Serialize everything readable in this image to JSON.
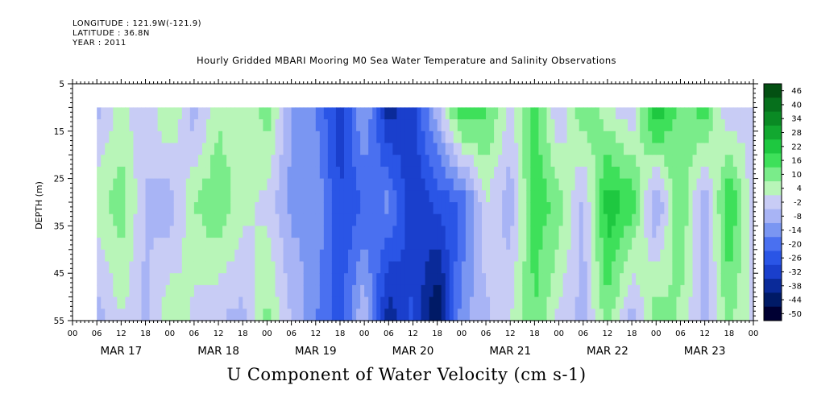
{
  "header": {
    "longitude": "LONGITUDE : 121.9W(-121.9)",
    "latitude": "LATITUDE : 36.8N",
    "year": "YEAR : 2011"
  },
  "chart_data": {
    "type": "heatmap",
    "title": "Hourly Gridded MBARI Mooring M0 Sea Water Temperature and Salinity Observations",
    "xlabel": "U Component of Water Velocity (cm s-1)",
    "ylabel": "DEPTH (m)",
    "x_range_hours": [
      0,
      168
    ],
    "data_start_hour": 6,
    "ylim": [
      5,
      55
    ],
    "data_depth_range": [
      10,
      55
    ],
    "y_ticks": [
      5,
      15,
      25,
      35,
      45,
      55
    ],
    "hour_tick_labels": [
      "00",
      "06",
      "12",
      "18"
    ],
    "date_labels": [
      "MAR 17",
      "MAR 18",
      "MAR 19",
      "MAR 20",
      "MAR 21",
      "MAR 22",
      "MAR 23"
    ],
    "colorbar": {
      "levels": [
        -50,
        -44,
        -38,
        -32,
        -26,
        -20,
        -14,
        -8,
        -2,
        4,
        10,
        16,
        22,
        28,
        34,
        40,
        46
      ],
      "labels": [
        "46",
        "40",
        "34",
        "28",
        "22",
        "16",
        "10",
        "4",
        "-2",
        "-8",
        "-14",
        "-20",
        "-26",
        "-32",
        "-38",
        "-44",
        "-50"
      ],
      "colors": [
        "#000033",
        "#001a66",
        "#0a2a99",
        "#1a3fcc",
        "#2a55e6",
        "#4a70f0",
        "#7a96f2",
        "#a8b4f5",
        "#c8ccf5",
        "#b8f5b8",
        "#7aec8a",
        "#3ee05a",
        "#1ec840",
        "#12a830",
        "#0a8a24",
        "#06701c",
        "#035012"
      ]
    },
    "u_velocity_hourly_by_depth": {
      "depth_profile_hours": [
        6,
        12,
        18,
        24,
        30,
        36,
        42,
        48,
        54,
        60,
        66,
        72,
        78,
        84,
        90,
        96,
        102,
        108,
        114,
        120,
        126,
        132,
        138,
        144,
        150,
        156,
        162,
        168
      ],
      "near_surface_10m": [
        -4,
        6,
        -2,
        12,
        -6,
        8,
        4,
        14,
        -8,
        -14,
        -30,
        -6,
        -36,
        -28,
        -4,
        24,
        18,
        2,
        20,
        -4,
        16,
        6,
        -2,
        30,
        12,
        20,
        -4,
        4
      ],
      "mid_30m": [
        8,
        14,
        -2,
        -6,
        10,
        16,
        6,
        2,
        -10,
        -8,
        -26,
        -20,
        -12,
        -32,
        -24,
        -20,
        4,
        -6,
        20,
        14,
        -4,
        26,
        20,
        -10,
        18,
        -8,
        24,
        -2
      ],
      "bottom_55m": [
        -6,
        4,
        -4,
        10,
        2,
        -2,
        -4,
        12,
        -2,
        -14,
        -22,
        -2,
        -38,
        -24,
        -46,
        -10,
        -4,
        4,
        16,
        2,
        -4,
        14,
        -6,
        16,
        8,
        -4,
        12,
        2
      ]
    }
  }
}
